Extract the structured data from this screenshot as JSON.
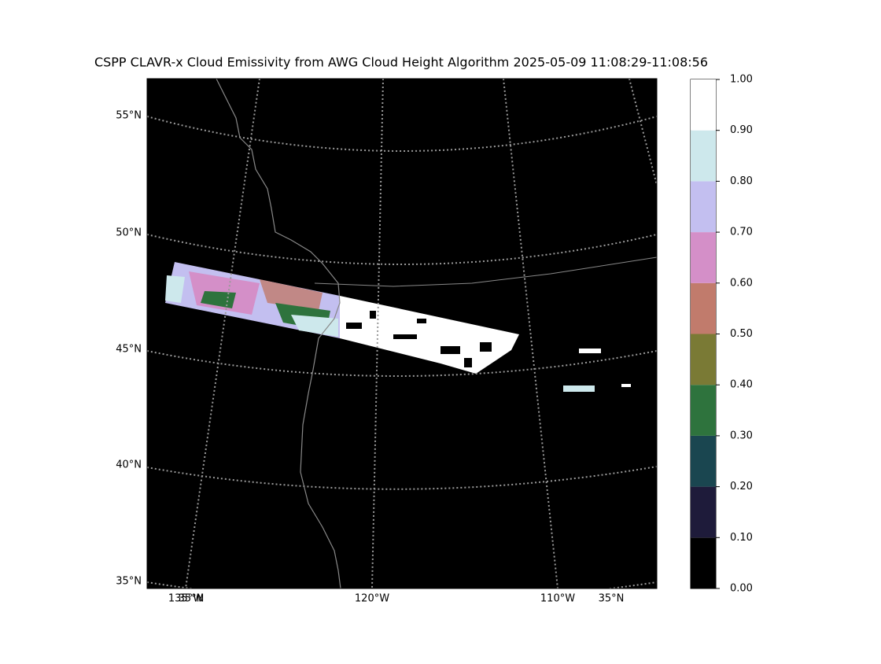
{
  "map": {
    "title": "CSPP CLAVR-x Cloud Emissivity from AWG Cloud Height Algorithm 2025-05-09 11:08:29-11:08:56",
    "lat_labels": [
      "55°N",
      "50°N",
      "45°N",
      "40°N",
      "35°N"
    ],
    "lon_labels": [
      "135°W",
      "35°N",
      "120°W",
      "110°W",
      "35°N"
    ]
  },
  "colorbar": {
    "ticks": [
      {
        "value": 0,
        "label": "0.00"
      },
      {
        "value": 0.1,
        "label": "0.10"
      },
      {
        "value": 0.2,
        "label": "0.20"
      },
      {
        "value": 0.3,
        "label": "0.30"
      },
      {
        "value": 0.4,
        "label": "0.40"
      },
      {
        "value": 0.5,
        "label": "0.50"
      },
      {
        "value": 0.6,
        "label": "0.60"
      },
      {
        "value": 0.7,
        "label": "0.70"
      },
      {
        "value": 0.8,
        "label": "0.80"
      },
      {
        "value": 0.9,
        "label": "0.90"
      },
      {
        "value": 1,
        "label": "1.00"
      }
    ],
    "colors": [
      "#000000",
      "#1e1b3a",
      "#1a4650",
      "#2e733d",
      "#7a7a35",
      "#c17b6c",
      "#d48fc8",
      "#c3bff0",
      "#cde8ec",
      "#ffffff"
    ]
  }
}
